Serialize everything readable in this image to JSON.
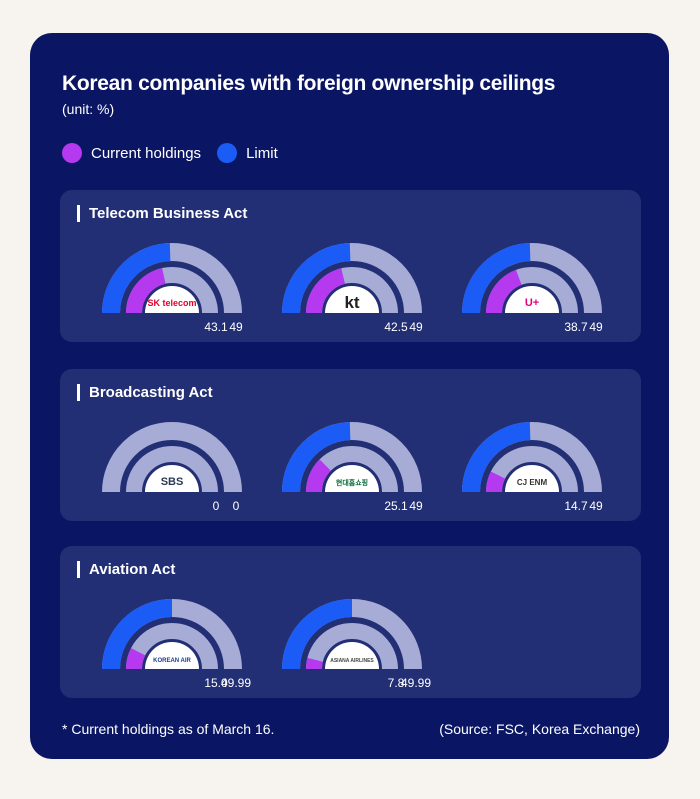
{
  "header": {
    "title": "Korean companies with foreign ownership ceilings",
    "unit": "(unit: %)"
  },
  "legend": [
    {
      "label": "Current holdings",
      "color": "#b539ee"
    },
    {
      "label": "Limit",
      "color": "#1a5cf5"
    }
  ],
  "colors": {
    "current": "#b539ee",
    "limit": "#1a5cf5",
    "track": "#a7acd6",
    "inner_track": "#a7acd6",
    "logo_bg": "#ffffff"
  },
  "chart_data": {
    "type": "gauge",
    "scale_max": 100,
    "sections": [
      {
        "title": "Telecom Business Act",
        "companies": [
          {
            "name": "SK telecom",
            "current": 43.1,
            "limit": 49,
            "current_label": "43.1",
            "limit_label": "49",
            "logo_text": "SK telecom"
          },
          {
            "name": "KT",
            "current": 42.5,
            "limit": 49,
            "current_label": "42.5",
            "limit_label": "49",
            "logo_text": "kt"
          },
          {
            "name": "LG U+",
            "current": 38.7,
            "limit": 49,
            "current_label": "38.7",
            "limit_label": "49",
            "logo_text": "U+"
          }
        ]
      },
      {
        "title": "Broadcasting Act",
        "companies": [
          {
            "name": "SBS",
            "current": 0,
            "limit": 0,
            "current_label": "0",
            "limit_label": "0",
            "logo_text": "SBS"
          },
          {
            "name": "Hyundai Home Shopping",
            "current": 25.1,
            "limit": 49,
            "current_label": "25.1",
            "limit_label": "49",
            "logo_text": "현대홈쇼핑"
          },
          {
            "name": "CJ ENM",
            "current": 14.7,
            "limit": 49,
            "current_label": "14.7",
            "limit_label": "49",
            "logo_text": "CJ ENM"
          }
        ]
      },
      {
        "title": "Aviation Act",
        "companies": [
          {
            "name": "Korean Air",
            "current": 15.0,
            "limit": 49.99,
            "current_label": "15.0",
            "limit_label": "49.99",
            "logo_text": "KOREAN AIR"
          },
          {
            "name": "Asiana Airlines",
            "current": 7.8,
            "limit": 49.99,
            "current_label": "7.8",
            "limit_label": "49.99",
            "logo_text": "ASIANA AIRLINES"
          }
        ]
      }
    ]
  },
  "footer": {
    "note": "* Current holdings as of March 16.",
    "source": "(Source: FSC, Korea Exchange)"
  }
}
